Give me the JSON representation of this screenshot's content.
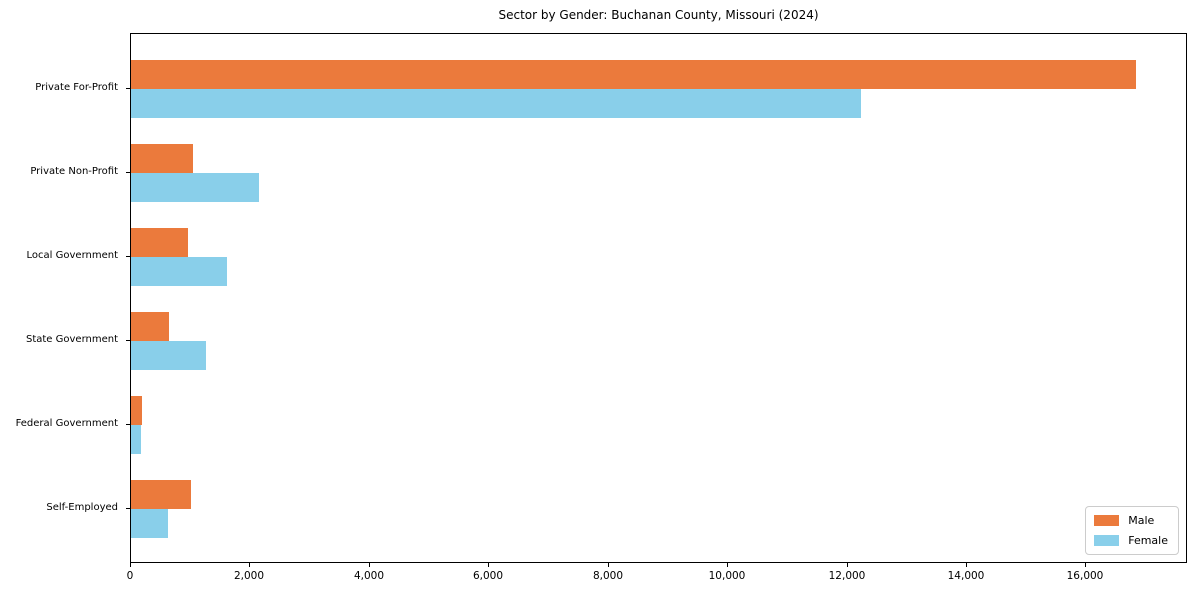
{
  "title": "Sector by Gender: Buchanan County, Missouri (2024)",
  "colors": {
    "male": "#eb7a3c",
    "female": "#89cfea",
    "spine": "#000000",
    "text": "#000000",
    "legend_border": "#cccccc",
    "background": "#ffffff"
  },
  "legend": {
    "items": [
      {
        "label": "Male"
      },
      {
        "label": "Female"
      }
    ],
    "position": "lower right"
  },
  "chart_data": {
    "type": "bar",
    "orientation": "horizontal",
    "title": "Sector by Gender: Buchanan County, Missouri (2024)",
    "xlabel": "",
    "ylabel": "",
    "categories": [
      "Private For-Profit",
      "Private Non-Profit",
      "Local Government",
      "State Government",
      "Federal Government",
      "Self-Employed"
    ],
    "series": [
      {
        "name": "Male",
        "color": "#eb7a3c",
        "values": [
          16830,
          1040,
          950,
          640,
          180,
          1000
        ]
      },
      {
        "name": "Female",
        "color": "#89cfea",
        "values": [
          12230,
          2140,
          1610,
          1260,
          170,
          620
        ]
      }
    ],
    "xlim": [
      0,
      17700
    ],
    "xticks": [
      0,
      2000,
      4000,
      6000,
      8000,
      10000,
      12000,
      14000,
      16000
    ],
    "xtick_labels": [
      "0",
      "2,000",
      "4,000",
      "6,000",
      "8,000",
      "10,000",
      "12,000",
      "14,000",
      "16,000"
    ],
    "grid": false,
    "legend_position": "lower right"
  }
}
